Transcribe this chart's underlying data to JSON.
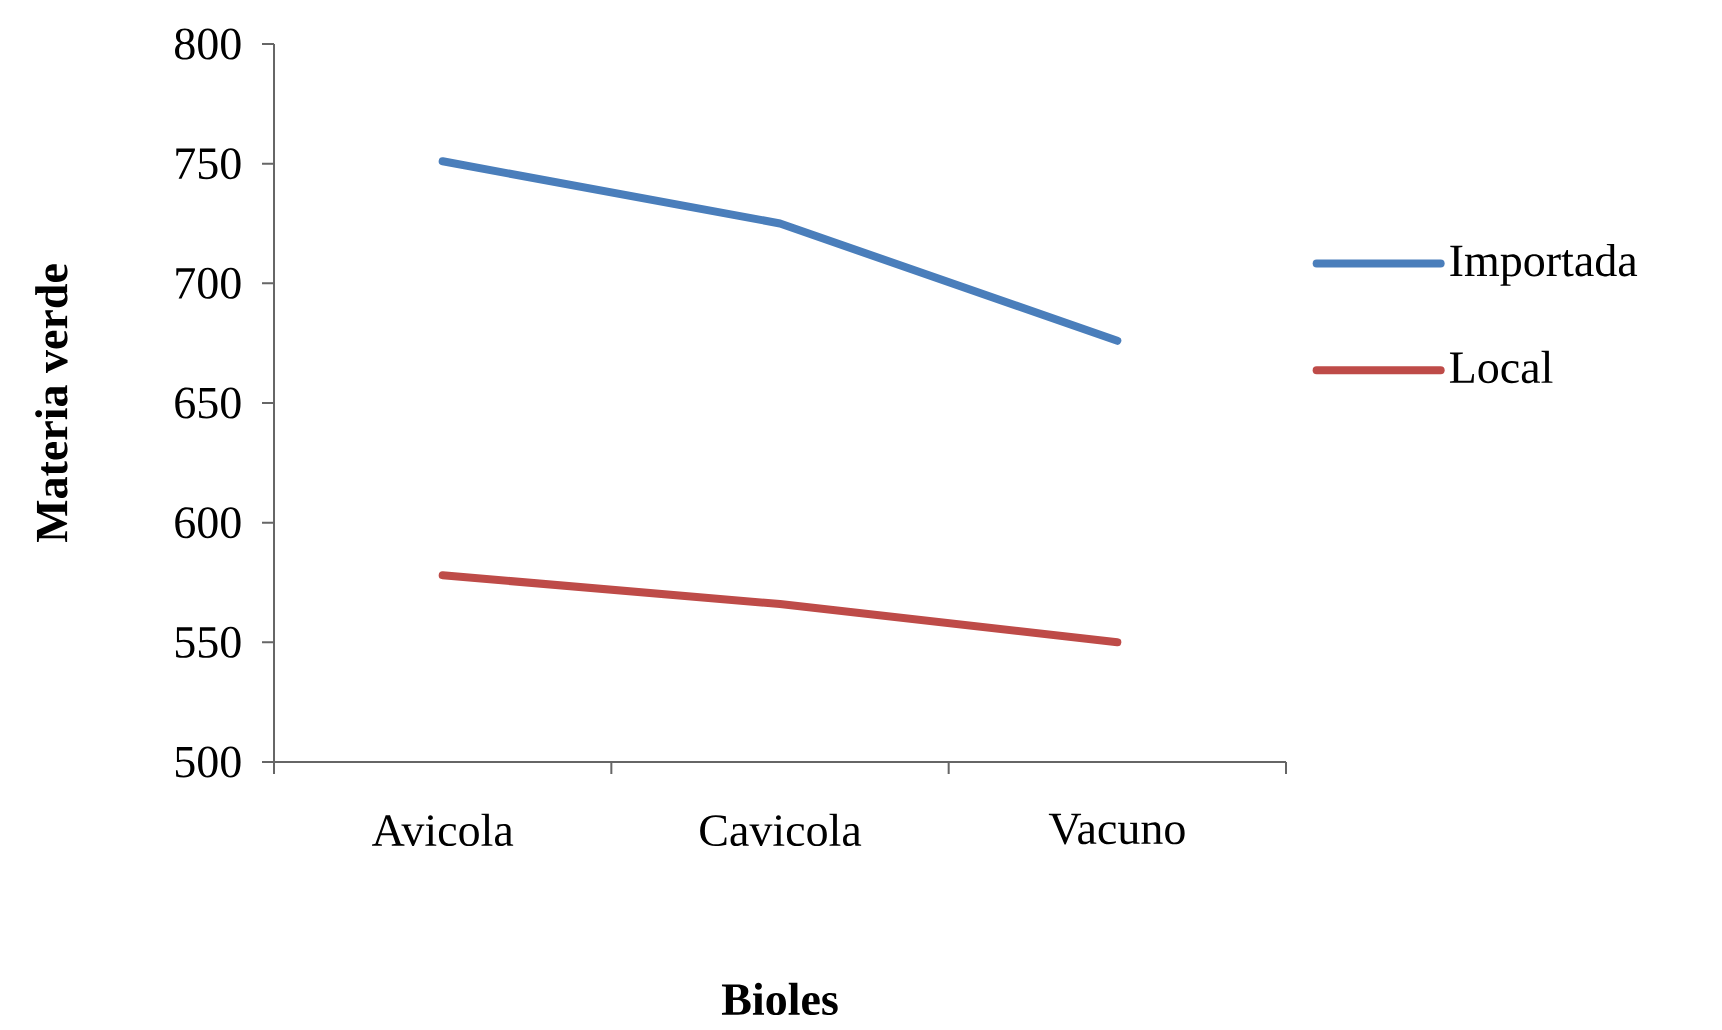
{
  "chart_data": {
    "type": "line",
    "xlabel": "Bioles",
    "ylabel": "Materia verde",
    "categories": [
      "Avicola",
      "Cavicola",
      "Vacuno"
    ],
    "series": [
      {
        "name": "Importada",
        "color": "#4a7ebb",
        "values": [
          751,
          725,
          676
        ]
      },
      {
        "name": "Local",
        "color": "#be4b48",
        "values": [
          578,
          566,
          550
        ]
      }
    ],
    "ylim": [
      500,
      800
    ],
    "yticks": [
      500,
      550,
      600,
      650,
      700,
      750,
      800
    ],
    "grid": false,
    "legend": "right",
    "marker": "none",
    "line_style": "solid"
  }
}
